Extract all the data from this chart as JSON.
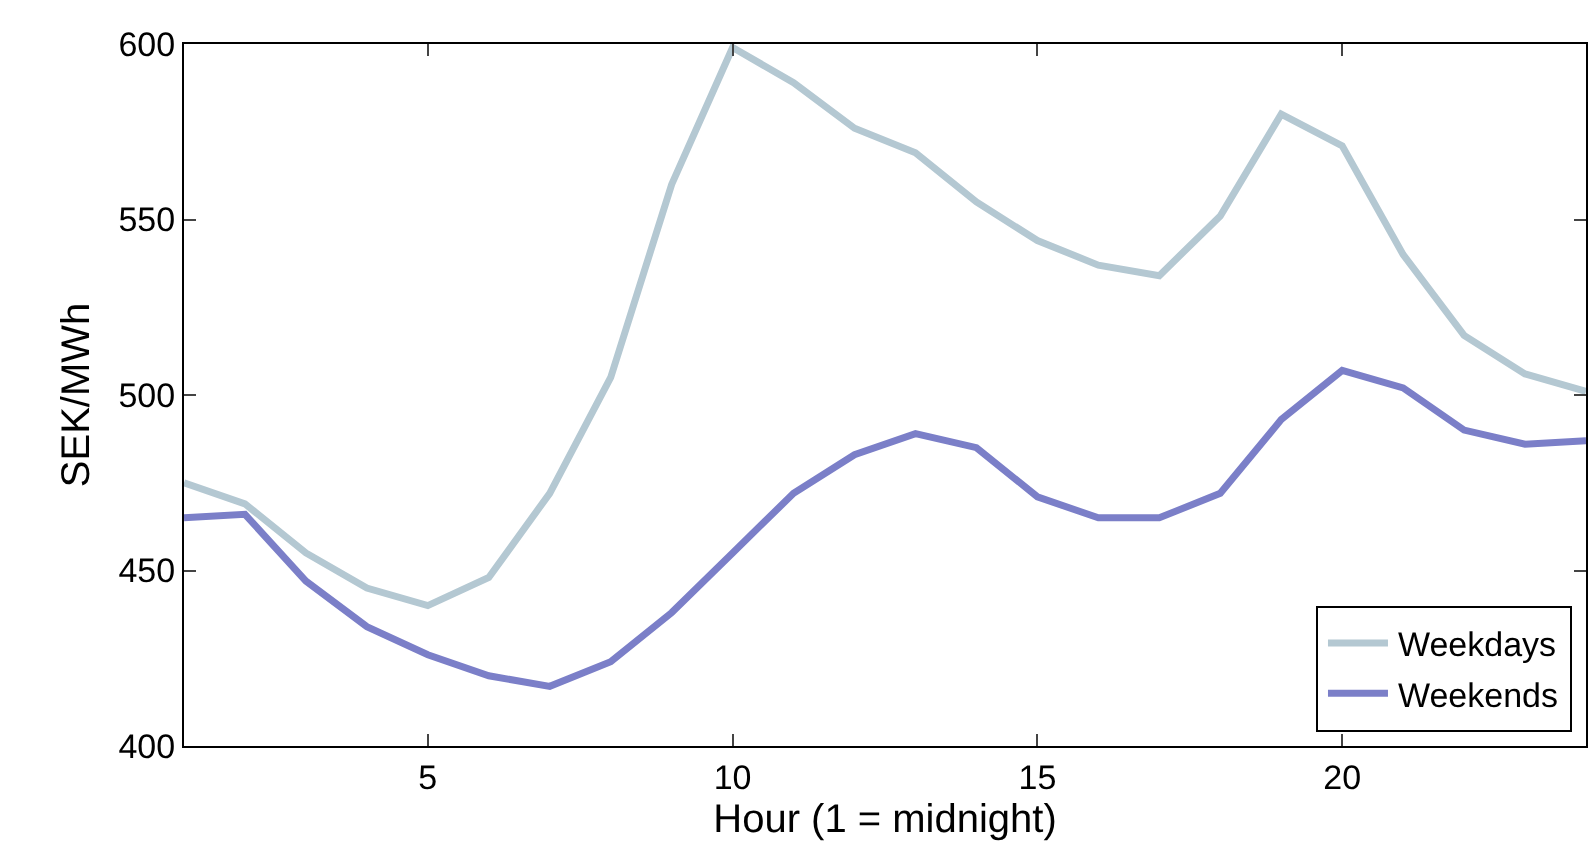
{
  "chart_data": {
    "type": "line",
    "xlabel": "Hour (1 = midnight)",
    "ylabel": "SEK/MWh",
    "x": [
      1,
      2,
      3,
      4,
      5,
      6,
      7,
      8,
      9,
      10,
      11,
      12,
      13,
      14,
      15,
      16,
      17,
      18,
      19,
      20,
      21,
      22,
      23,
      24
    ],
    "series": [
      {
        "name": "Weekdays",
        "color": "#b4c8d2",
        "values": [
          475,
          469,
          455,
          445,
          440,
          448,
          472,
          505,
          560,
          599,
          589,
          576,
          569,
          555,
          544,
          537,
          534,
          551,
          580,
          571,
          540,
          517,
          506,
          501
        ]
      },
      {
        "name": "Weekends",
        "color": "#7b7fc8",
        "values": [
          465,
          466,
          447,
          434,
          426,
          420,
          417,
          424,
          438,
          455,
          472,
          483,
          489,
          485,
          471,
          465,
          465,
          472,
          493,
          507,
          502,
          490,
          486,
          487
        ]
      }
    ],
    "xlim": [
      1,
      24
    ],
    "xticks": [
      5,
      10,
      15,
      20
    ],
    "ylim": [
      400,
      600
    ],
    "yticks": [
      400,
      450,
      500,
      550,
      600
    ],
    "grid": false,
    "legend": "bottom right",
    "marker": "none",
    "line_style": "solid"
  }
}
